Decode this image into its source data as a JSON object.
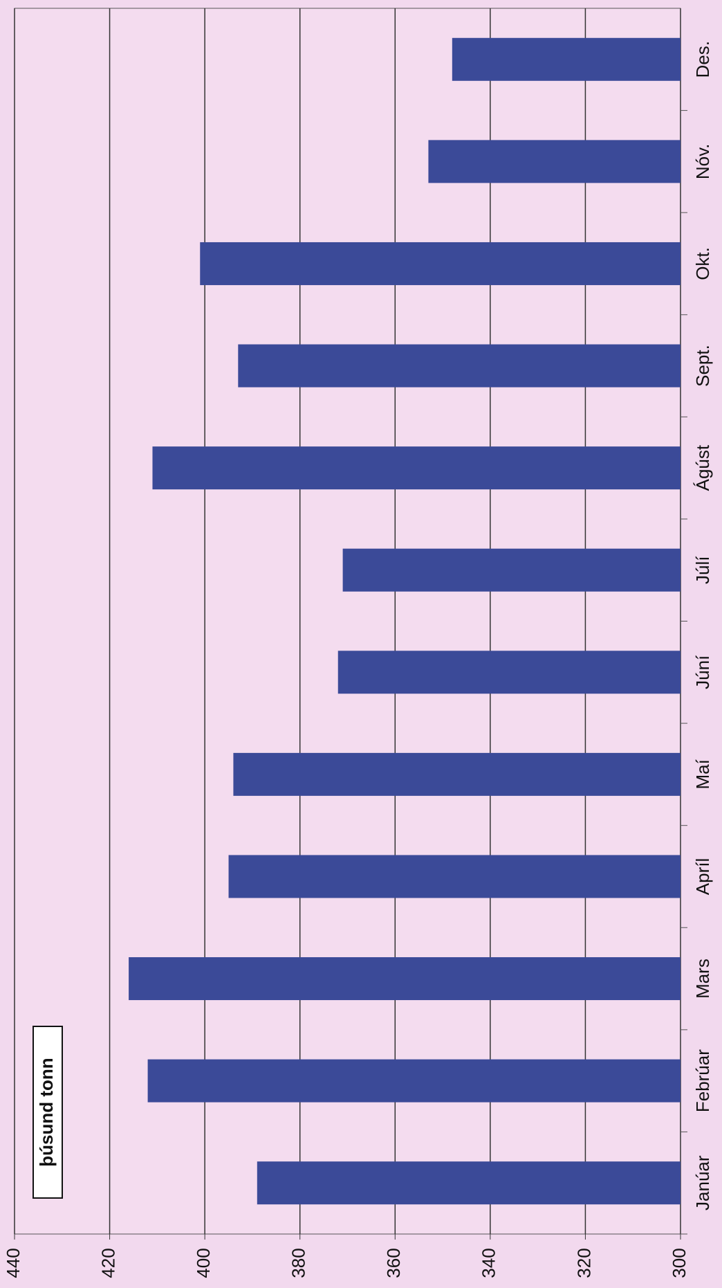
{
  "chart_data": {
    "type": "bar",
    "orientation": "horizontal",
    "y_label": "þúsund tonn",
    "categories": [
      "Janúar",
      "Febrúar",
      "Mars",
      "Apríl",
      "Maí",
      "Júní",
      "Júlí",
      "Ágúst",
      "Sept.",
      "Okt.",
      "Nóv.",
      "Des."
    ],
    "values": [
      389,
      412,
      416,
      395,
      394,
      372,
      371,
      411,
      393,
      401,
      353,
      348
    ],
    "color": "#3b4a98",
    "ylim": [
      300,
      440
    ],
    "yticks": [
      300,
      320,
      340,
      360,
      380,
      400,
      420,
      440
    ],
    "grid": true
  }
}
